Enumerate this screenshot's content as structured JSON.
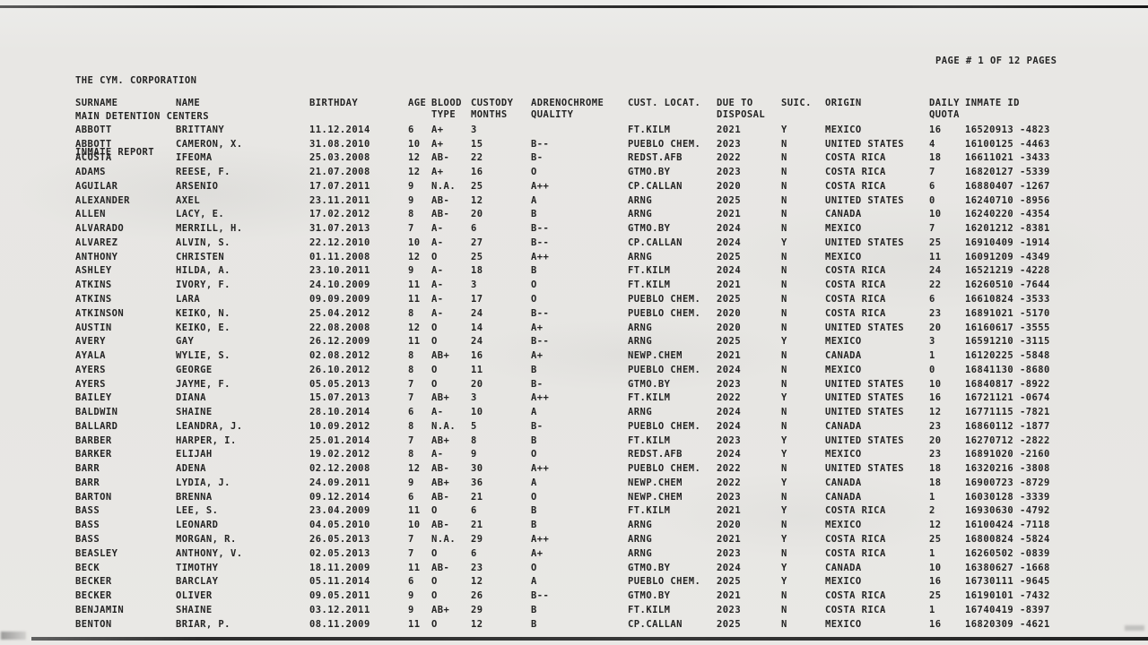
{
  "report": {
    "company": "THE CYM. CORPORATION",
    "department": "MAIN DETENTION CENTERS",
    "title": "INMATE REPORT",
    "page_info": "PAGE # 1 OF 12 PAGES",
    "colors": {
      "paper": "#e7e6e3",
      "ink": "#242424"
    },
    "columns": [
      {
        "key": "surname",
        "l1": "SURNAME",
        "l2": ""
      },
      {
        "key": "name",
        "l1": "NAME",
        "l2": ""
      },
      {
        "key": "birthday",
        "l1": "BIRTHDAY",
        "l2": ""
      },
      {
        "key": "age",
        "l1": "AGE",
        "l2": ""
      },
      {
        "key": "blood-type",
        "l1": "BLOOD",
        "l2": "TYPE"
      },
      {
        "key": "custody-months",
        "l1": "CUSTODY",
        "l2": "MONTHS"
      },
      {
        "key": "adrenochrome-quality",
        "l1": "ADRENOCHROME",
        "l2": "QUALITY"
      },
      {
        "key": "cust-locat",
        "l1": "CUST. LOCAT.",
        "l2": ""
      },
      {
        "key": "due-to-disposal",
        "l1": "DUE TO",
        "l2": "DISPOSAL"
      },
      {
        "key": "suic",
        "l1": "SUIC.",
        "l2": ""
      },
      {
        "key": "origin",
        "l1": "ORIGIN",
        "l2": ""
      },
      {
        "key": "daily-quota",
        "l1": "DAILY",
        "l2": "QUOTA"
      },
      {
        "key": "inmate-id",
        "l1": "INMATE ID",
        "l2": ""
      }
    ],
    "rows": [
      [
        "ABBOTT",
        "BRITTANY",
        "11.12.2014",
        "6",
        "A+",
        "3",
        "",
        "FT.KILM",
        "2021",
        "Y",
        "MEXICO",
        "16",
        "16520913 -4823"
      ],
      [
        "ABBOTT",
        "CAMERON, X.",
        "31.08.2010",
        "10",
        "A+",
        "15",
        "B--",
        "PUEBLO CHEM.",
        "2023",
        "N",
        "UNITED STATES",
        "4",
        "16100125 -4463"
      ],
      [
        "ACOSTA",
        "IFEOMA",
        "25.03.2008",
        "12",
        "AB-",
        "22",
        "B-",
        "REDST.AFB",
        "2022",
        "N",
        "COSTA RICA",
        "18",
        "16611021 -3433"
      ],
      [
        "ADAMS",
        "REESE, F.",
        "21.07.2008",
        "12",
        "A+",
        "16",
        "O",
        "GTMO.BY",
        "2023",
        "N",
        "COSTA RICA",
        "7",
        "16820127 -5339"
      ],
      [
        "AGUILAR",
        "ARSENIO",
        "17.07.2011",
        "9",
        "N.A.",
        "25",
        "A++",
        "CP.CALLAN",
        "2020",
        "N",
        "COSTA RICA",
        "6",
        "16880407 -1267"
      ],
      [
        "ALEXANDER",
        "AXEL",
        "23.11.2011",
        "9",
        "AB-",
        "12",
        "A",
        "ARNG",
        "2025",
        "N",
        "UNITED STATES",
        "0",
        "16240710 -8956"
      ],
      [
        "ALLEN",
        "LACY, E.",
        "17.02.2012",
        "8",
        "AB-",
        "20",
        "B",
        "ARNG",
        "2021",
        "N",
        "CANADA",
        "10",
        "16240220 -4354"
      ],
      [
        "ALVARADO",
        "MERRILL, H.",
        "31.07.2013",
        "7",
        "A-",
        "6",
        "B--",
        "GTMO.BY",
        "2024",
        "N",
        "MEXICO",
        "7",
        "16201212 -8381"
      ],
      [
        "ALVAREZ",
        "ALVIN, S.",
        "22.12.2010",
        "10",
        "A-",
        "27",
        "B--",
        "CP.CALLAN",
        "2024",
        "Y",
        "UNITED STATES",
        "25",
        "16910409 -1914"
      ],
      [
        "ANTHONY",
        "CHRISTEN",
        "01.11.2008",
        "12",
        "O",
        "25",
        "A++",
        "ARNG",
        "2025",
        "N",
        "MEXICO",
        "11",
        "16091209 -4349"
      ],
      [
        "ASHLEY",
        "HILDA, A.",
        "23.10.2011",
        "9",
        "A-",
        "18",
        "B",
        "FT.KILM",
        "2024",
        "N",
        "COSTA RICA",
        "24",
        "16521219 -4228"
      ],
      [
        "ATKINS",
        "IVORY, F.",
        "24.10.2009",
        "11",
        "A-",
        "3",
        "O",
        "FT.KILM",
        "2021",
        "N",
        "COSTA RICA",
        "22",
        "16260510 -7644"
      ],
      [
        "ATKINS",
        "LARA",
        "09.09.2009",
        "11",
        "A-",
        "17",
        "O",
        "PUEBLO CHEM.",
        "2025",
        "N",
        "COSTA RICA",
        "6",
        "16610824 -3533"
      ],
      [
        "ATKINSON",
        "KEIKO, N.",
        "25.04.2012",
        "8",
        "A-",
        "24",
        "B--",
        "PUEBLO CHEM.",
        "2020",
        "N",
        "COSTA RICA",
        "23",
        "16891021 -5170"
      ],
      [
        "AUSTIN",
        "KEIKO, E.",
        "22.08.2008",
        "12",
        "O",
        "14",
        "A+",
        "ARNG",
        "2020",
        "N",
        "UNITED STATES",
        "20",
        "16160617 -3555"
      ],
      [
        "AVERY",
        "GAY",
        "26.12.2009",
        "11",
        "O",
        "24",
        "B--",
        "ARNG",
        "2025",
        "Y",
        "MEXICO",
        "3",
        "16591210 -3115"
      ],
      [
        "AYALA",
        "WYLIE, S.",
        "02.08.2012",
        "8",
        "AB+",
        "16",
        "A+",
        "NEWP.CHEM",
        "2021",
        "N",
        "CANADA",
        "1",
        "16120225 -5848"
      ],
      [
        "AYERS",
        "GEORGE",
        "26.10.2012",
        "8",
        "O",
        "11",
        "B",
        "PUEBLO CHEM.",
        "2024",
        "N",
        "MEXICO",
        "0",
        "16841130 -8680"
      ],
      [
        "AYERS",
        "JAYME, F.",
        "05.05.2013",
        "7",
        "O",
        "20",
        "B-",
        "GTMO.BY",
        "2023",
        "N",
        "UNITED STATES",
        "10",
        "16840817 -8922"
      ],
      [
        "BAILEY",
        "DIANA",
        "15.07.2013",
        "7",
        "AB+",
        "3",
        "A++",
        "FT.KILM",
        "2022",
        "Y",
        "UNITED STATES",
        "16",
        "16721121 -0674"
      ],
      [
        "BALDWIN",
        "SHAINE",
        "28.10.2014",
        "6",
        "A-",
        "10",
        "A",
        "ARNG",
        "2024",
        "N",
        "UNITED STATES",
        "12",
        "16771115 -7821"
      ],
      [
        "BALLARD",
        "LEANDRA, J.",
        "10.09.2012",
        "8",
        "N.A.",
        "5",
        "B-",
        "PUEBLO CHEM.",
        "2024",
        "N",
        "CANADA",
        "23",
        "16860112 -1877"
      ],
      [
        "BARBER",
        "HARPER, I.",
        "25.01.2014",
        "7",
        "AB+",
        "8",
        "B",
        "FT.KILM",
        "2023",
        "Y",
        "UNITED STATES",
        "20",
        "16270712 -2822"
      ],
      [
        "BARKER",
        "ELIJAH",
        "19.02.2012",
        "8",
        "A-",
        "9",
        "O",
        "REDST.AFB",
        "2024",
        "Y",
        "MEXICO",
        "23",
        "16891020 -2160"
      ],
      [
        "BARR",
        "ADENA",
        "02.12.2008",
        "12",
        "AB-",
        "30",
        "A++",
        "PUEBLO CHEM.",
        "2022",
        "N",
        "UNITED STATES",
        "18",
        "16320216 -3808"
      ],
      [
        "BARR",
        "LYDIA, J.",
        "24.09.2011",
        "9",
        "AB+",
        "36",
        "A",
        "NEWP.CHEM",
        "2022",
        "Y",
        "CANADA",
        "18",
        "16900723 -8729"
      ],
      [
        "BARTON",
        "BRENNA",
        "09.12.2014",
        "6",
        "AB-",
        "21",
        "O",
        "NEWP.CHEM",
        "2023",
        "N",
        "CANADA",
        "1",
        "16030128 -3339"
      ],
      [
        "BASS",
        "LEE, S.",
        "23.04.2009",
        "11",
        "O",
        "6",
        "B",
        "FT.KILM",
        "2021",
        "Y",
        "COSTA RICA",
        "2",
        "16930630 -4792"
      ],
      [
        "BASS",
        "LEONARD",
        "04.05.2010",
        "10",
        "AB-",
        "21",
        "B",
        "ARNG",
        "2020",
        "N",
        "MEXICO",
        "12",
        "16100424 -7118"
      ],
      [
        "BASS",
        "MORGAN, R.",
        "26.05.2013",
        "7",
        "N.A.",
        "29",
        "A++",
        "ARNG",
        "2021",
        "Y",
        "COSTA RICA",
        "25",
        "16800824 -5824"
      ],
      [
        "BEASLEY",
        "ANTHONY, V.",
        "02.05.2013",
        "7",
        "O",
        "6",
        "A+",
        "ARNG",
        "2023",
        "N",
        "COSTA RICA",
        "1",
        "16260502 -0839"
      ],
      [
        "BECK",
        "TIMOTHY",
        "18.11.2009",
        "11",
        "AB-",
        "23",
        "O",
        "GTMO.BY",
        "2024",
        "Y",
        "CANADA",
        "10",
        "16380627 -1668"
      ],
      [
        "BECKER",
        "BARCLAY",
        "05.11.2014",
        "6",
        "O",
        "12",
        "A",
        "PUEBLO CHEM.",
        "2025",
        "Y",
        "MEXICO",
        "16",
        "16730111 -9645"
      ],
      [
        "BECKER",
        "OLIVER",
        "09.05.2011",
        "9",
        "O",
        "26",
        "B--",
        "GTMO.BY",
        "2021",
        "N",
        "COSTA RICA",
        "25",
        "16190101 -7432"
      ],
      [
        "BENJAMIN",
        "SHAINE",
        "03.12.2011",
        "9",
        "AB+",
        "29",
        "B",
        "FT.KILM",
        "2023",
        "N",
        "COSTA RICA",
        "1",
        "16740419 -8397"
      ],
      [
        "BENTON",
        "BRIAR, P.",
        "08.11.2009",
        "11",
        "O",
        "12",
        "B",
        "CP.CALLAN",
        "2025",
        "N",
        "MEXICO",
        "16",
        "16820309 -4621"
      ]
    ]
  }
}
